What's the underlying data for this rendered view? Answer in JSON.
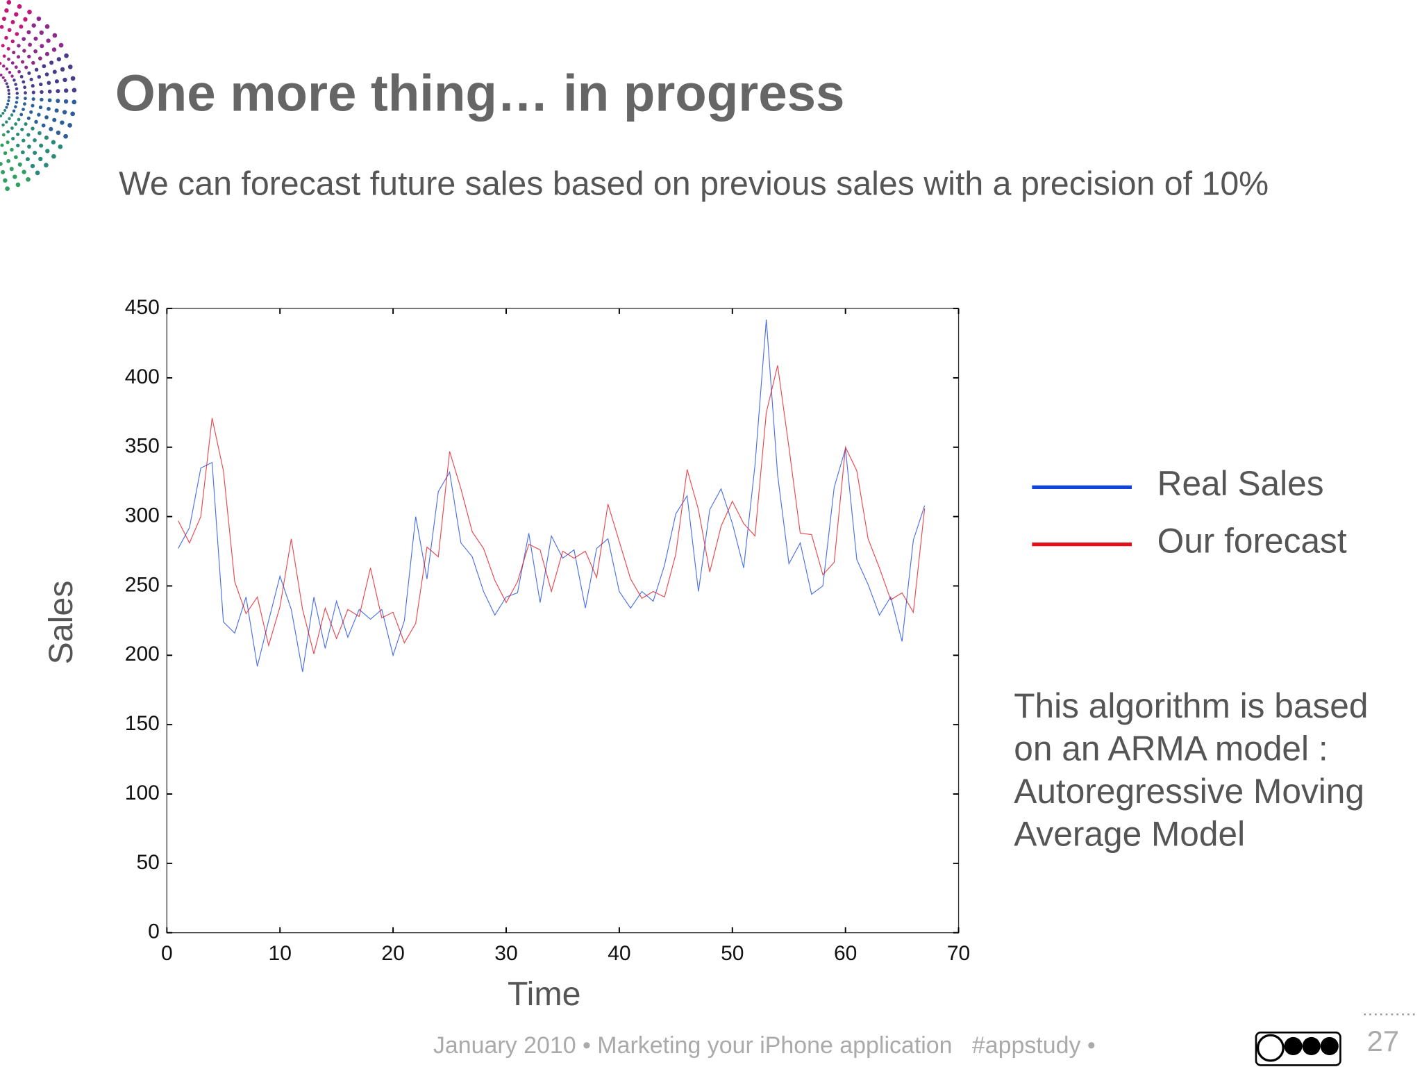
{
  "title": "One more thing… in progress",
  "subtitle": "We can forecast future sales based on previous sales with a precision of 10%",
  "chart_data": {
    "type": "line",
    "xlabel": "Time",
    "ylabel": "Sales",
    "xlim": [
      0,
      70
    ],
    "xticks": [
      0,
      10,
      20,
      30,
      40,
      50,
      60,
      70
    ],
    "ylim": [
      0,
      450
    ],
    "yticks": [
      0,
      50,
      100,
      150,
      200,
      250,
      300,
      350,
      400,
      450
    ],
    "grid": false,
    "legend": "right",
    "x": [
      1,
      2,
      3,
      4,
      5,
      6,
      7,
      8,
      9,
      10,
      11,
      12,
      13,
      14,
      15,
      16,
      17,
      18,
      19,
      20,
      21,
      22,
      23,
      24,
      25,
      26,
      27,
      28,
      29,
      30,
      31,
      32,
      33,
      34,
      35,
      36,
      37,
      38,
      39,
      40,
      41,
      42,
      43,
      44,
      45,
      46,
      47,
      48,
      49,
      50,
      51,
      52,
      53,
      54,
      55,
      56,
      57,
      58,
      59,
      60,
      61,
      62,
      63,
      64,
      65,
      66,
      67
    ],
    "series": [
      {
        "name": "Real Sales",
        "color": "#1144dd",
        "values": [
          277,
          292,
          335,
          339,
          224,
          216,
          242,
          192,
          225,
          257,
          233,
          188,
          242,
          205,
          239,
          213,
          233,
          226,
          233,
          200,
          225,
          300,
          255,
          318,
          332,
          281,
          271,
          246,
          229,
          242,
          245,
          288,
          238,
          286,
          270,
          276,
          234,
          277,
          284,
          246,
          234,
          246,
          239,
          265,
          302,
          315,
          246,
          305,
          320,
          295,
          263,
          337,
          442,
          330,
          266,
          281,
          244,
          250,
          321,
          349,
          269,
          251,
          229,
          242,
          210,
          283,
          308
        ]
      },
      {
        "name": "Our forecast",
        "color": "#e0101a",
        "values": [
          297,
          281,
          300,
          371,
          333,
          253,
          230,
          242,
          207,
          235,
          284,
          233,
          201,
          234,
          212,
          233,
          228,
          263,
          227,
          231,
          209,
          223,
          278,
          271,
          347,
          320,
          289,
          277,
          254,
          238,
          253,
          280,
          276,
          246,
          275,
          270,
          275,
          256,
          309,
          282,
          255,
          241,
          246,
          242,
          273,
          334,
          305,
          260,
          293,
          311,
          295,
          286,
          375,
          409,
          350,
          288,
          287,
          258,
          267,
          350,
          333,
          284,
          263,
          240,
          245,
          231,
          306
        ]
      }
    ]
  },
  "annotation": [
    "This algorithm is based",
    "on an ARMA model :",
    "Autoregressive Moving",
    "Average Model"
  ],
  "footer": "January 2010 • Marketing your iPhone application   #appstudy •",
  "page_number": "27"
}
